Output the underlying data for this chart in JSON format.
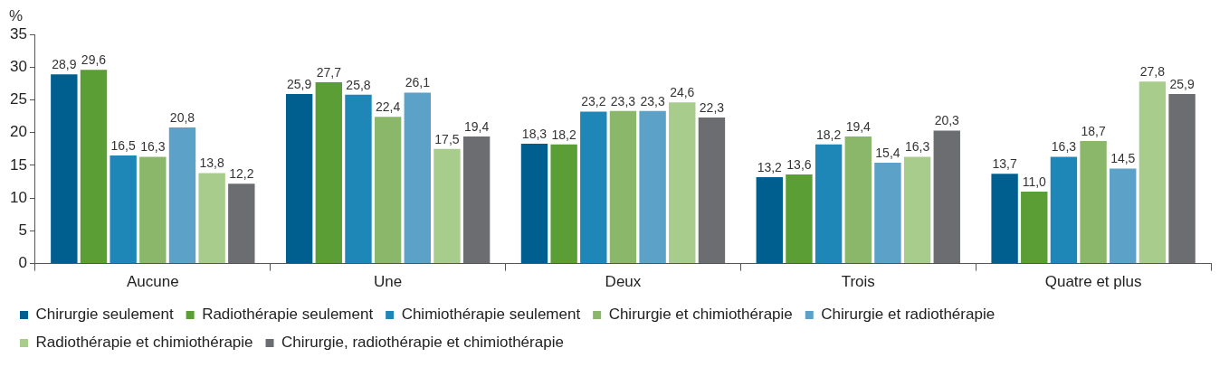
{
  "chart_data": {
    "type": "bar",
    "ylabel": "%",
    "categories": [
      "Aucune",
      "Une",
      "Deux",
      "Trois",
      "Quatre et plus"
    ],
    "series": [
      {
        "name": "Chirurgie seulement",
        "color": "#005f8f",
        "values": [
          28.9,
          25.9,
          18.3,
          13.2,
          13.7
        ],
        "value_labels": [
          "28,9",
          "25,9",
          "18,3",
          "13,2",
          "13,7"
        ]
      },
      {
        "name": "Radiothérapie seulement",
        "color": "#5a9e35",
        "values": [
          29.6,
          27.7,
          18.2,
          13.6,
          11.0
        ],
        "value_labels": [
          "29,6",
          "27,7",
          "18,2",
          "13,6",
          "11,0"
        ]
      },
      {
        "name": "Chimiothérapie seulement",
        "color": "#1f87b8",
        "values": [
          16.5,
          25.8,
          23.2,
          18.2,
          16.3
        ],
        "value_labels": [
          "16,5",
          "25,8",
          "23,2",
          "18,2",
          "16,3"
        ]
      },
      {
        "name": "Chirurgie et chimiothérapie",
        "color": "#8ab76a",
        "values": [
          16.3,
          22.4,
          23.3,
          19.4,
          18.7
        ],
        "value_labels": [
          "16,3",
          "22,4",
          "23,3",
          "19,4",
          "18,7"
        ]
      },
      {
        "name": "Chirurgie et radiothérapie",
        "color": "#5ba1c8",
        "values": [
          20.8,
          26.1,
          23.3,
          15.4,
          14.5
        ],
        "value_labels": [
          "20,8",
          "26,1",
          "23,3",
          "15,4",
          "14,5"
        ]
      },
      {
        "name": "Radiothérapie et chimiothérapie",
        "color": "#a7cc8c",
        "values": [
          13.8,
          17.5,
          24.6,
          16.3,
          27.8
        ],
        "value_labels": [
          "13,8",
          "17,5",
          "24,6",
          "16,3",
          "27,8"
        ]
      },
      {
        "name": "Chirurgie, radiothérapie et chimiothérapie",
        "color": "#6b6d70",
        "values": [
          12.2,
          19.4,
          22.3,
          20.3,
          25.9
        ],
        "value_labels": [
          "12,2",
          "19,4",
          "22,3",
          "20,3",
          "25,9"
        ]
      }
    ],
    "ylim": [
      0,
      35
    ],
    "yticks": [
      0,
      5,
      10,
      15,
      20,
      25,
      30,
      35
    ],
    "grid": false,
    "legend": "bottom"
  }
}
